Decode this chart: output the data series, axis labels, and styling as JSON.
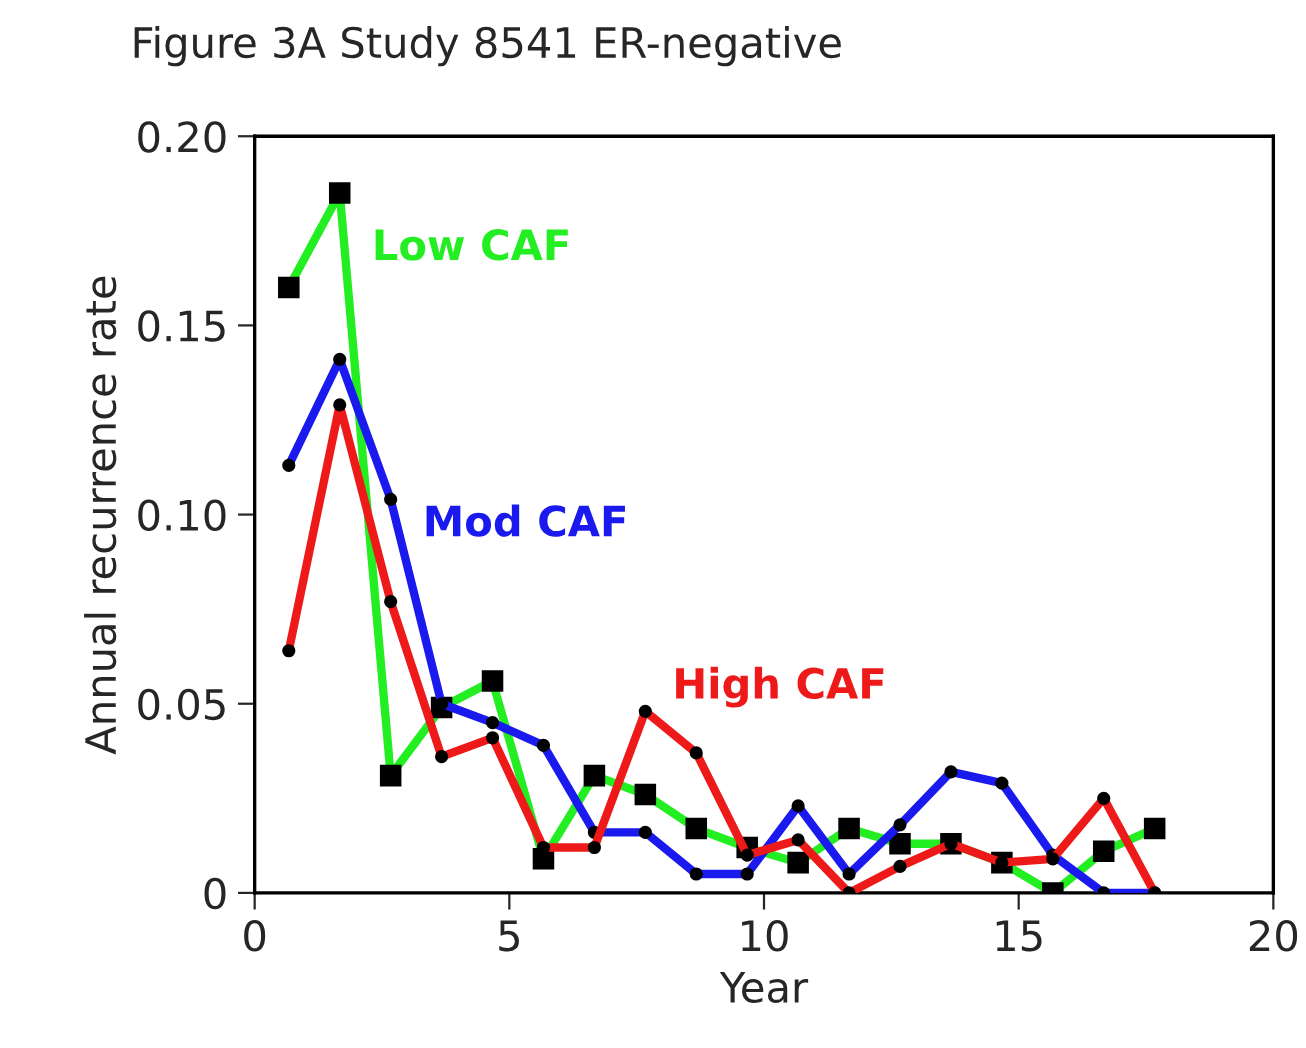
{
  "chart_data": {
    "type": "line",
    "title": "Figure 3A Study 8541 ER-negative",
    "xlabel": "Year",
    "ylabel": "Annual recurrence rate",
    "x": [
      0.67,
      1.67,
      2.67,
      3.67,
      4.67,
      5.67,
      6.67,
      7.67,
      8.67,
      9.67,
      10.67,
      11.67,
      12.67,
      13.67,
      14.67,
      15.67,
      16.67,
      17.67
    ],
    "series": [
      {
        "name": "Low CAF",
        "color": "#22ee22",
        "marker": "square",
        "values": [
          0.16,
          0.185,
          0.031,
          0.049,
          0.056,
          0.009,
          0.031,
          0.026,
          0.017,
          0.012,
          0.008,
          0.017,
          0.013,
          0.013,
          0.008,
          0.0,
          0.011,
          0.017
        ]
      },
      {
        "name": "Mod CAF",
        "color": "#1a1aee",
        "marker": "circle",
        "values": [
          0.113,
          0.141,
          0.104,
          0.05,
          0.045,
          0.039,
          0.016,
          0.016,
          0.005,
          0.005,
          0.023,
          0.005,
          0.018,
          0.032,
          0.029,
          0.01,
          0.0,
          0.0
        ]
      },
      {
        "name": "High CAF",
        "color": "#ee1a1a",
        "marker": "circle",
        "values": [
          0.064,
          0.129,
          0.077,
          0.036,
          0.041,
          0.012,
          0.012,
          0.048,
          0.037,
          0.01,
          0.014,
          0.0,
          0.007,
          0.013,
          0.008,
          0.009,
          0.025,
          0.0
        ]
      }
    ],
    "xlim": [
      0,
      20
    ],
    "ylim": [
      0,
      0.2
    ],
    "xticks": [
      0,
      5,
      10,
      15,
      20
    ],
    "yticks": [
      0,
      {
        "value": 0.05,
        "label": "0.05"
      },
      {
        "value": 0.1,
        "label": "0.10"
      },
      {
        "value": 0.15,
        "label": "0.15"
      },
      {
        "value": 0.2,
        "label": "0.20"
      }
    ],
    "grid": false,
    "legend": false,
    "line_style": "solid"
  }
}
